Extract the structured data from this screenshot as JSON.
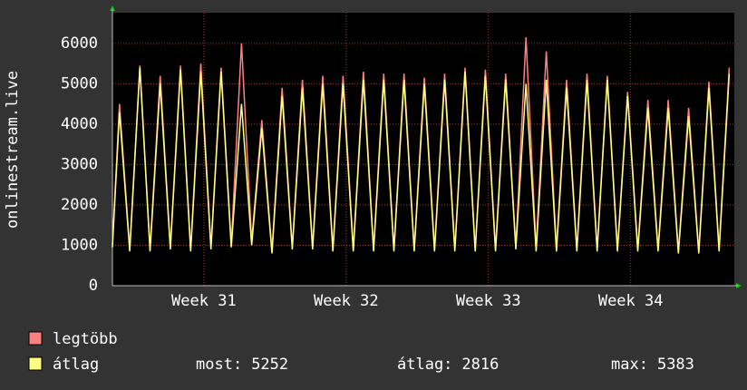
{
  "chart_data": {
    "type": "line",
    "y_label": "onlinestream.live",
    "x": [
      0,
      0.35,
      0.85,
      1.35,
      1.85,
      2.35,
      2.85,
      3.35,
      3.85,
      4.35,
      4.85,
      5.35,
      5.85,
      6.35,
      6.85,
      7.35,
      7.85,
      8.35,
      8.85,
      9.35,
      9.85,
      10.35,
      10.85,
      11.35,
      11.85,
      12.35,
      12.85,
      13.35,
      13.85,
      14.35,
      14.85,
      15.35,
      15.85,
      16.35,
      16.85,
      17.35,
      17.85,
      18.35,
      18.85,
      19.35,
      19.85,
      20.35,
      20.85,
      21.35,
      21.85,
      22.35,
      22.85,
      23.35,
      23.85,
      24.35,
      24.85,
      25.35,
      25.85,
      26.35,
      26.85,
      27.35,
      27.85,
      28.35,
      28.85,
      29.35,
      29.85,
      30.35
    ],
    "series": [
      {
        "name": "legtöbb",
        "color": "#ff8080",
        "values": [
          1000,
          4500,
          900,
          5450,
          900,
          5200,
          950,
          5450,
          900,
          5500,
          950,
          5400,
          1000,
          6000,
          1100,
          4100,
          850,
          4900,
          950,
          5100,
          950,
          5200,
          900,
          5200,
          900,
          5300,
          900,
          5250,
          900,
          5250,
          900,
          5150,
          900,
          5250,
          900,
          5400,
          900,
          5350,
          900,
          5250,
          950,
          6150,
          900,
          5800,
          900,
          5100,
          900,
          5250,
          900,
          5200,
          900,
          4800,
          900,
          4600,
          900,
          4600,
          850,
          4400,
          850,
          5050,
          900,
          5400
        ]
      },
      {
        "name": "átlag",
        "color": "#ffff80",
        "values": [
          950,
          4300,
          850,
          5400,
          850,
          5000,
          900,
          5350,
          850,
          5300,
          900,
          5300,
          950,
          4500,
          1000,
          3900,
          800,
          4700,
          900,
          4900,
          900,
          5000,
          850,
          5000,
          850,
          5100,
          850,
          5100,
          850,
          5100,
          850,
          5000,
          850,
          5100,
          850,
          5300,
          850,
          5200,
          850,
          5100,
          900,
          5000,
          850,
          5100,
          850,
          4900,
          850,
          5100,
          850,
          5100,
          850,
          4700,
          850,
          4400,
          850,
          4400,
          800,
          4200,
          800,
          4900,
          850,
          5250
        ]
      }
    ],
    "xlim": [
      0,
      30.6
    ],
    "xticks": [
      {
        "value": 4.5,
        "label": "Week 31"
      },
      {
        "value": 11.5,
        "label": "Week 32"
      },
      {
        "value": 18.5,
        "label": "Week 33"
      },
      {
        "value": 25.5,
        "label": "Week 34"
      }
    ],
    "ylim": [
      0,
      6760
    ],
    "yticks": [
      0,
      1000,
      2000,
      3000,
      4000,
      5000,
      6000
    ],
    "grid": true,
    "stats": [
      {
        "label": "most:",
        "value": 5252
      },
      {
        "label": "átlag:",
        "value": 2816
      },
      {
        "label": "max:",
        "value": 5383
      }
    ]
  }
}
